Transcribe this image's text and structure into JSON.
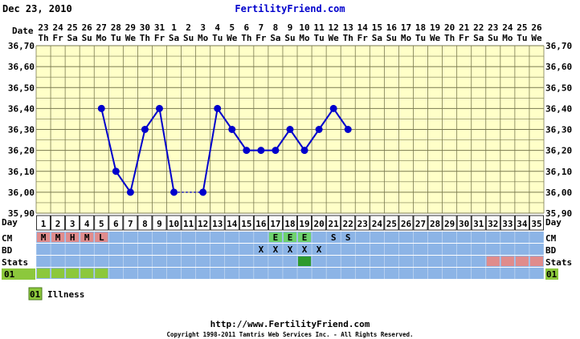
{
  "header": {
    "date": "Dec 23, 2010",
    "site": "FertilityFriend.com"
  },
  "labels": {
    "date_row": "Date",
    "day_row": "Day",
    "cm_row": "CM",
    "bd_row": "BD",
    "stats_row": "Stats",
    "code_row": "01"
  },
  "legend": {
    "code": "01",
    "label": "Illness"
  },
  "footer": {
    "url": "http://www.FertilityFriend.com",
    "copyright": "Copyright 1998-2011 Tamtris Web Services Inc. - All Rights Reserved."
  },
  "colors": {
    "plot_bg": "#ffffc8",
    "grid": "#7a7a50",
    "line": "#0000cc",
    "row_bg": "#8cb4e6",
    "menses": "#e08c8c",
    "egg_white": "#6ed26e",
    "stats_green": "#2e9a2e",
    "illness": "#8cc83c"
  },
  "chart_data": {
    "type": "line",
    "title": "",
    "xlabel": "Day",
    "ylabel": "",
    "ylim": [
      35.9,
      36.7
    ],
    "yticks": [
      "35,90",
      "36,00",
      "36,10",
      "36,20",
      "36,30",
      "36,40",
      "36,50",
      "36,60",
      "36,70"
    ],
    "dates": [
      "23",
      "24",
      "25",
      "26",
      "27",
      "28",
      "29",
      "30",
      "31",
      "1",
      "2",
      "3",
      "4",
      "5",
      "6",
      "7",
      "8",
      "9",
      "10",
      "11",
      "12",
      "13",
      "14",
      "15",
      "16",
      "17",
      "18",
      "19",
      "20",
      "21",
      "22",
      "23",
      "24",
      "25",
      "26"
    ],
    "weekdays": [
      "Th",
      "Fr",
      "Sa",
      "Su",
      "Mo",
      "Tu",
      "We",
      "Th",
      "Fr",
      "Sa",
      "Su",
      "Mo",
      "Tu",
      "We",
      "Th",
      "Fr",
      "Sa",
      "Su",
      "Mo",
      "Tu",
      "We",
      "Th",
      "Fr",
      "Sa",
      "Su",
      "Mo",
      "Tu",
      "We",
      "Th",
      "Fr",
      "Sa",
      "Su",
      "Mo",
      "Tu",
      "We"
    ],
    "days": [
      "1",
      "2",
      "3",
      "4",
      "5",
      "6",
      "7",
      "8",
      "9",
      "10",
      "11",
      "12",
      "13",
      "14",
      "15",
      "16",
      "17",
      "18",
      "19",
      "20",
      "21",
      "22",
      "23",
      "24",
      "25",
      "26",
      "27",
      "28",
      "29",
      "30",
      "31",
      "32",
      "33",
      "34",
      "35"
    ],
    "series": [
      {
        "points": [
          {
            "day": 5,
            "temp": 36.4
          },
          {
            "day": 6,
            "temp": 36.1
          },
          {
            "day": 7,
            "temp": 36.0
          },
          {
            "day": 8,
            "temp": 36.3
          },
          {
            "day": 9,
            "temp": 36.4
          },
          {
            "day": 10,
            "temp": 36.0
          },
          {
            "day": 12,
            "temp": 36.0
          },
          {
            "day": 13,
            "temp": 36.4
          },
          {
            "day": 14,
            "temp": 36.3
          },
          {
            "day": 15,
            "temp": 36.2
          },
          {
            "day": 16,
            "temp": 36.2
          },
          {
            "day": 17,
            "temp": 36.2
          },
          {
            "day": 18,
            "temp": 36.3
          },
          {
            "day": 19,
            "temp": 36.2
          },
          {
            "day": 20,
            "temp": 36.3
          },
          {
            "day": 21,
            "temp": 36.4
          },
          {
            "day": 22,
            "temp": 36.3
          }
        ],
        "dotted_gaps": [
          [
            10,
            12
          ]
        ]
      }
    ],
    "cm": [
      {
        "day": 1,
        "value": "M",
        "kind": "menses"
      },
      {
        "day": 2,
        "value": "M",
        "kind": "menses"
      },
      {
        "day": 3,
        "value": "H",
        "kind": "menses"
      },
      {
        "day": 4,
        "value": "M",
        "kind": "menses"
      },
      {
        "day": 5,
        "value": "L",
        "kind": "menses"
      },
      {
        "day": 17,
        "value": "E",
        "kind": "egg_white"
      },
      {
        "day": 18,
        "value": "E",
        "kind": "egg_white"
      },
      {
        "day": 19,
        "value": "E",
        "kind": "egg_white"
      },
      {
        "day": 21,
        "value": "S",
        "kind": "plain"
      },
      {
        "day": 22,
        "value": "S",
        "kind": "plain"
      }
    ],
    "bd": [
      {
        "day": 16,
        "value": "X"
      },
      {
        "day": 17,
        "value": "X"
      },
      {
        "day": 18,
        "value": "X"
      },
      {
        "day": 19,
        "value": "X"
      },
      {
        "day": 20,
        "value": "X"
      }
    ],
    "stats": [
      {
        "day": 19,
        "kind": "stats_green"
      },
      {
        "day": 32,
        "kind": "menses"
      },
      {
        "day": 33,
        "kind": "menses"
      },
      {
        "day": 34,
        "kind": "menses"
      },
      {
        "day": 35,
        "kind": "menses"
      }
    ],
    "code01": [
      {
        "day": 1,
        "kind": "illness"
      },
      {
        "day": 2,
        "kind": "illness"
      },
      {
        "day": 3,
        "kind": "illness"
      },
      {
        "day": 4,
        "kind": "illness"
      },
      {
        "day": 5,
        "kind": "illness"
      }
    ]
  }
}
